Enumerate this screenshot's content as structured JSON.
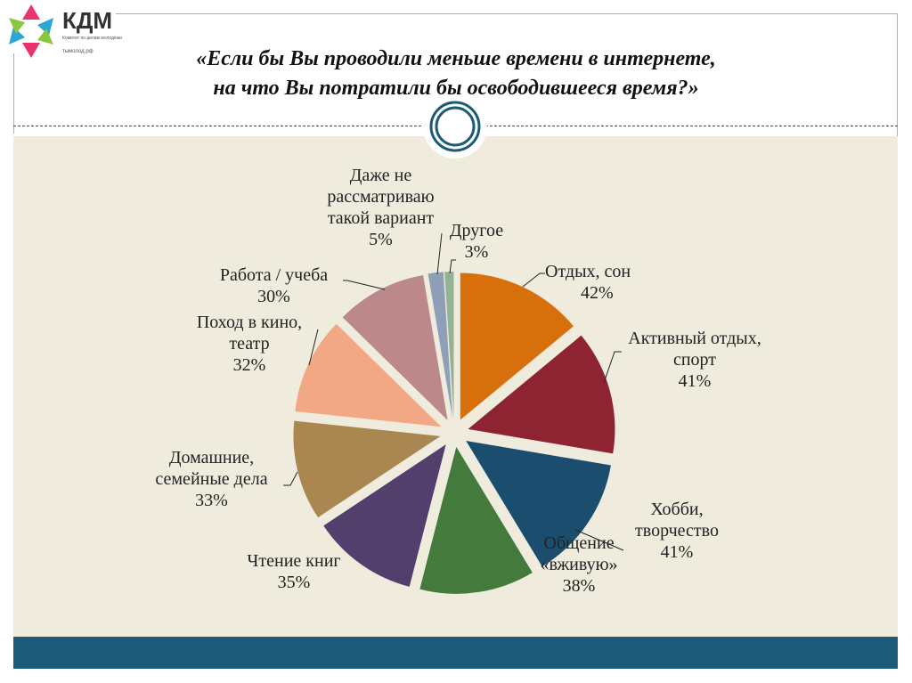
{
  "logo": {
    "name": "КДМ",
    "subtitle": "Комитет по делам молодёжи",
    "url": "тымолод.рф"
  },
  "slide_title_line1": "«Если бы Вы проводили меньше времени в интернете,",
  "slide_title_line2": "на что Вы потратили бы освободившееся время?»",
  "colors": {
    "accent": "#1d5a78",
    "background": "#efecde"
  },
  "chart_data": {
    "type": "pie",
    "exploded": true,
    "start": "top",
    "direction": "clockwise",
    "slices": [
      {
        "label": "Отдых, сон",
        "value": 42,
        "display": "42%",
        "color": "#d76f0d"
      },
      {
        "label": "Активный отдых, спорт",
        "value": 41,
        "display": "41%",
        "color": "#8e2331"
      },
      {
        "label": "Хобби, творчество",
        "value": 41,
        "display": "41%",
        "color": "#1b4e6e"
      },
      {
        "label": "Общение «вживую»",
        "value": 38,
        "display": "38%",
        "color": "#447a3b"
      },
      {
        "label": "Чтение книг",
        "value": 35,
        "display": "35%",
        "color": "#533f6c"
      },
      {
        "label": "Домашние, семейные дела",
        "value": 33,
        "display": "33%",
        "color": "#aa8650"
      },
      {
        "label": "Поход в кино, театр",
        "value": 32,
        "display": "32%",
        "color": "#f2a785"
      },
      {
        "label": "Работа / учеба",
        "value": 30,
        "display": "30%",
        "color": "#bb888b"
      },
      {
        "label": "Даже не рассматриваю такой вариант",
        "value": 5,
        "display": "5%",
        "color": "#8ea0b8"
      },
      {
        "label": "Другое",
        "value": 3,
        "display": "3%",
        "color": "#93b394"
      }
    ]
  }
}
